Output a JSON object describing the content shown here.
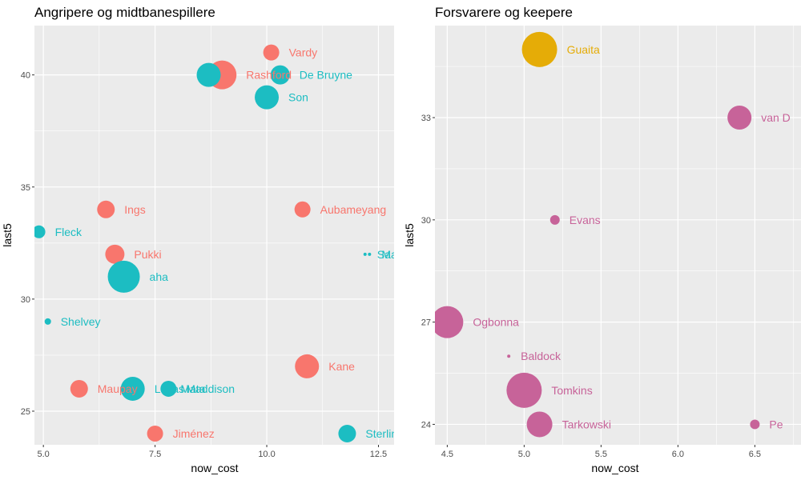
{
  "chart_data": [
    {
      "type": "scatter",
      "title": "Angripere og midtbanespillere",
      "xlabel": "now_cost",
      "ylabel": "last5",
      "xlim": [
        4.8,
        12.85
      ],
      "ylim": [
        23.5,
        42.2
      ],
      "xticks": [
        5.0,
        7.5,
        10.0,
        12.5
      ],
      "xtick_labels": [
        "5.0",
        "7.5",
        "10.0",
        "12.5"
      ],
      "yticks": [
        25,
        30,
        35,
        40
      ],
      "ytick_labels": [
        "25",
        "30",
        "35",
        "40"
      ],
      "xminor": [
        6.25,
        8.75,
        11.25
      ],
      "yminor": [
        27.5,
        32.5,
        37.5
      ],
      "grid": true,
      "legend": "none",
      "colors": {
        "red": "#F8766D",
        "teal": "#1CBDC2"
      },
      "points": [
        {
          "label": "Vardy",
          "x": 10.1,
          "y": 41,
          "size": 10,
          "color": "#F8766D"
        },
        {
          "label": "Rashford",
          "x": 9.0,
          "y": 40,
          "size": 18,
          "color": "#F8766D"
        },
        {
          "label": "",
          "x": 8.7,
          "y": 40,
          "size": 15,
          "color": "#1CBDC2"
        },
        {
          "label": "De Bruyne",
          "x": 10.3,
          "y": 40,
          "size": 12,
          "color": "#1CBDC2"
        },
        {
          "label": "Son",
          "x": 10.0,
          "y": 39,
          "size": 15,
          "color": "#1CBDC2"
        },
        {
          "label": "Ings",
          "x": 6.4,
          "y": 34,
          "size": 11,
          "color": "#F8766D"
        },
        {
          "label": "Aubameyang",
          "x": 10.8,
          "y": 34,
          "size": 10,
          "color": "#F8766D"
        },
        {
          "label": "Fleck",
          "x": 4.9,
          "y": 33,
          "size": 8,
          "color": "#1CBDC2"
        },
        {
          "label": "Pukki",
          "x": 6.6,
          "y": 32,
          "size": 12,
          "color": "#F8766D"
        },
        {
          "label": "Sa",
          "x": 12.2,
          "y": 32,
          "size": 2,
          "color": "#1CBDC2"
        },
        {
          "label": "Ma",
          "x": 12.3,
          "y": 32,
          "size": 2,
          "color": "#1CBDC2"
        },
        {
          "label": "aha",
          "x": 6.8,
          "y": 31,
          "size": 20,
          "color": "#1CBDC2"
        },
        {
          "label": "Shelvey",
          "x": 5.1,
          "y": 29,
          "size": 4,
          "color": "#1CBDC2"
        },
        {
          "label": "Kane",
          "x": 10.9,
          "y": 27,
          "size": 15,
          "color": "#F8766D"
        },
        {
          "label": "Maupay",
          "x": 5.8,
          "y": 26,
          "size": 11,
          "color": "#F8766D"
        },
        {
          "label": "Lucas",
          "x": 7.0,
          "y": 26,
          "size": 15,
          "color": "#1CBDC2"
        },
        {
          "label": "Maddison",
          "x": 7.8,
          "y": 26,
          "size": 10,
          "color": "#1CBDC2"
        },
        {
          "label": "Mata",
          "x": 7.8,
          "y": 26,
          "size": 0,
          "color": "#1CBDC2"
        },
        {
          "label": "Jiménez",
          "x": 7.5,
          "y": 24,
          "size": 10,
          "color": "#F8766D"
        },
        {
          "label": "Sterling",
          "x": 11.8,
          "y": 24,
          "size": 11,
          "color": "#1CBDC2"
        }
      ]
    },
    {
      "type": "scatter",
      "title": "Forsvarere og keepere",
      "xlabel": "now_cost",
      "ylabel": "last5",
      "xlim": [
        4.42,
        6.8
      ],
      "ylim": [
        23.4,
        35.7
      ],
      "xticks": [
        4.5,
        5.0,
        5.5,
        6.0,
        6.5
      ],
      "xtick_labels": [
        "4.5",
        "5.0",
        "5.5",
        "6.0",
        "6.5"
      ],
      "yticks": [
        24,
        27,
        30,
        33
      ],
      "ytick_labels": [
        "24",
        "27",
        "30",
        "33"
      ],
      "xminor": [
        4.75,
        5.25,
        5.75,
        6.25,
        6.75
      ],
      "yminor": [
        25.5,
        28.5,
        31.5,
        34.5
      ],
      "grid": true,
      "legend": "none",
      "colors": {
        "gold": "#E5AC07",
        "pink": "#C76399"
      },
      "points": [
        {
          "label": "Guaita",
          "x": 5.1,
          "y": 35,
          "size": 22,
          "color": "#E5AC07"
        },
        {
          "label": "van D",
          "x": 6.4,
          "y": 33,
          "size": 15,
          "color": "#C76399"
        },
        {
          "label": "Evans",
          "x": 5.2,
          "y": 30,
          "size": 6,
          "color": "#C76399"
        },
        {
          "label": "Ogbonna",
          "x": 4.5,
          "y": 27,
          "size": 20,
          "color": "#C76399"
        },
        {
          "label": "Baldock",
          "x": 4.9,
          "y": 26,
          "size": 2,
          "color": "#C76399"
        },
        {
          "label": "Tomkins",
          "x": 5.0,
          "y": 25,
          "size": 22,
          "color": "#C76399"
        },
        {
          "label": "Tarkowski",
          "x": 5.1,
          "y": 24,
          "size": 16,
          "color": "#C76399"
        },
        {
          "label": "Pe",
          "x": 6.5,
          "y": 24,
          "size": 6,
          "color": "#C76399"
        }
      ]
    }
  ]
}
